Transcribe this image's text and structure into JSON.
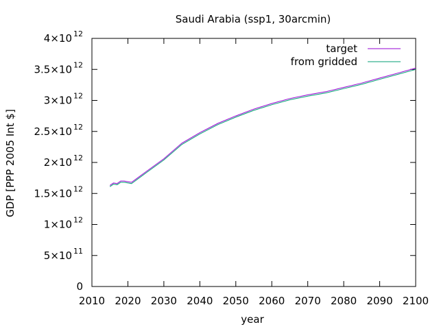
{
  "chart_data": {
    "type": "line",
    "title": "Saudi Arabia (ssp1, 30arcmin)",
    "xlabel": "year",
    "ylabel": "GDP [PPP 2005 Int $]",
    "xlim": [
      2010,
      2100
    ],
    "ylim": [
      0,
      4000000000000.0
    ],
    "x_ticks": [
      2010,
      2020,
      2030,
      2040,
      2050,
      2060,
      2070,
      2080,
      2090,
      2100
    ],
    "y_ticks": [
      {
        "value": 0,
        "mantissa": "0",
        "exp": ""
      },
      {
        "value": 500000000000.0,
        "mantissa": "5×10",
        "exp": "11"
      },
      {
        "value": 1000000000000.0,
        "mantissa": "1×10",
        "exp": "12"
      },
      {
        "value": 1500000000000.0,
        "mantissa": "1.5×10",
        "exp": "12"
      },
      {
        "value": 2000000000000.0,
        "mantissa": "2×10",
        "exp": "12"
      },
      {
        "value": 2500000000000.0,
        "mantissa": "2.5×10",
        "exp": "12"
      },
      {
        "value": 3000000000000.0,
        "mantissa": "3×10",
        "exp": "12"
      },
      {
        "value": 3500000000000.0,
        "mantissa": "3.5×10",
        "exp": "12"
      },
      {
        "value": 4000000000000.0,
        "mantissa": "4×10",
        "exp": "12"
      }
    ],
    "grid": false,
    "legend_position": "top-right",
    "x": [
      2015,
      2016,
      2017,
      2018,
      2019,
      2020,
      2021,
      2022,
      2025,
      2030,
      2035,
      2040,
      2045,
      2050,
      2055,
      2060,
      2065,
      2070,
      2075,
      2080,
      2085,
      2090,
      2095,
      2100
    ],
    "series": [
      {
        "name": "target",
        "color": "#9400d3",
        "values": [
          1630000000000.0,
          1670000000000.0,
          1660000000000.0,
          1700000000000.0,
          1700000000000.0,
          1690000000000.0,
          1680000000000.0,
          1720000000000.0,
          1850000000000.0,
          2060000000000.0,
          2310000000000.0,
          2480000000000.0,
          2630000000000.0,
          2750000000000.0,
          2860000000000.0,
          2950000000000.0,
          3030000000000.0,
          3090000000000.0,
          3140000000000.0,
          3210000000000.0,
          3280000000000.0,
          3360000000000.0,
          3440000000000.0,
          3520000000000.0
        ]
      },
      {
        "name": "from gridded",
        "color": "#009e73",
        "values": [
          1610000000000.0,
          1650000000000.0,
          1640000000000.0,
          1680000000000.0,
          1680000000000.0,
          1670000000000.0,
          1660000000000.0,
          1700000000000.0,
          1830000000000.0,
          2040000000000.0,
          2290000000000.0,
          2460000000000.0,
          2610000000000.0,
          2730000000000.0,
          2840000000000.0,
          2930000000000.0,
          3010000000000.0,
          3070000000000.0,
          3120000000000.0,
          3190000000000.0,
          3260000000000.0,
          3340000000000.0,
          3420000000000.0,
          3500000000000.0
        ]
      }
    ]
  }
}
